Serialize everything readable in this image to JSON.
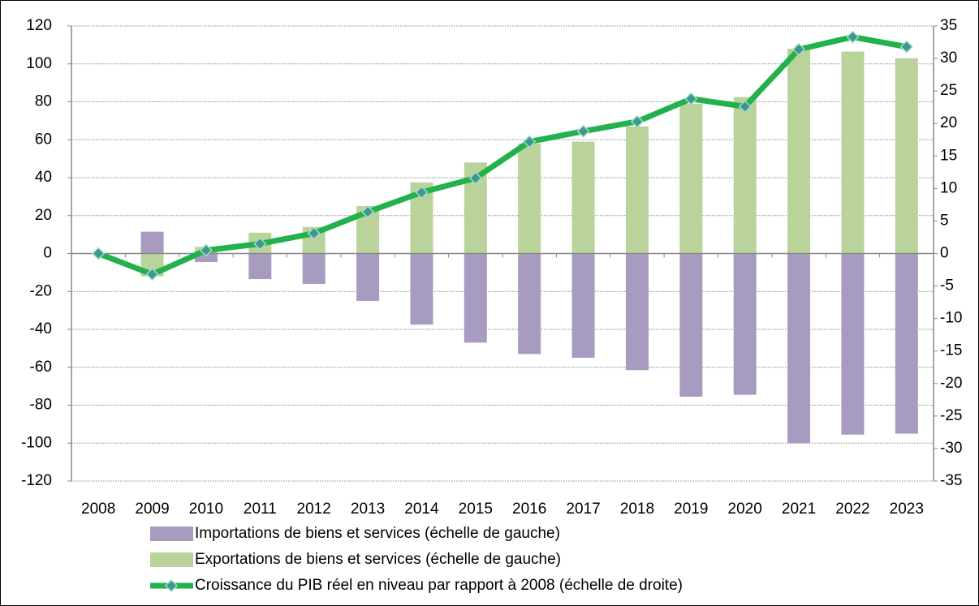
{
  "chart_data": {
    "type": "bar_line",
    "categories": [
      "2008",
      "2009",
      "2010",
      "2011",
      "2012",
      "2013",
      "2014",
      "2015",
      "2016",
      "2017",
      "2018",
      "2019",
      "2020",
      "2021",
      "2022",
      "2023"
    ],
    "series": [
      {
        "name": "Importations de biens et services (échelle de gauche)",
        "color": "#a89bc0",
        "type": "bar",
        "values": [
          0,
          11.5,
          -4.5,
          -13.5,
          -16,
          -25,
          -37.5,
          -47,
          -53,
          -55,
          -61.5,
          -75.5,
          -74.5,
          -100,
          -95.5,
          -95
        ]
      },
      {
        "name": "Exportations de biens et services (échelle de gauche)",
        "color": "#b9d39b",
        "type": "bar",
        "values": [
          0,
          -12,
          3.5,
          11,
          14,
          25,
          37.5,
          48,
          58,
          59,
          67,
          79,
          82.5,
          108,
          106.5,
          103
        ]
      },
      {
        "name": "Croissance du PIB réel en niveau par rapport à 2008 (échelle de droite)",
        "color": "#22b14c",
        "marker_color": "#3c9a8c",
        "type": "line",
        "axis": "y2",
        "values": [
          0,
          -3.2,
          0.5,
          1.5,
          3.1,
          6.4,
          9.4,
          11.6,
          17.2,
          18.8,
          20.3,
          23.8,
          22.6,
          31.4,
          33.3,
          31.8
        ]
      }
    ],
    "ylim": [
      -120,
      120
    ],
    "yticks": [
      120,
      100,
      80,
      60,
      40,
      20,
      0,
      -20,
      -40,
      -60,
      -80,
      -100,
      -120
    ],
    "y2lim": [
      -35,
      35
    ],
    "y2ticks": [
      35,
      30,
      25,
      20,
      15,
      10,
      5,
      0,
      -5,
      -10,
      -15,
      -20,
      -25,
      -30,
      -35
    ],
    "grid": true,
    "legend": "bottom"
  }
}
